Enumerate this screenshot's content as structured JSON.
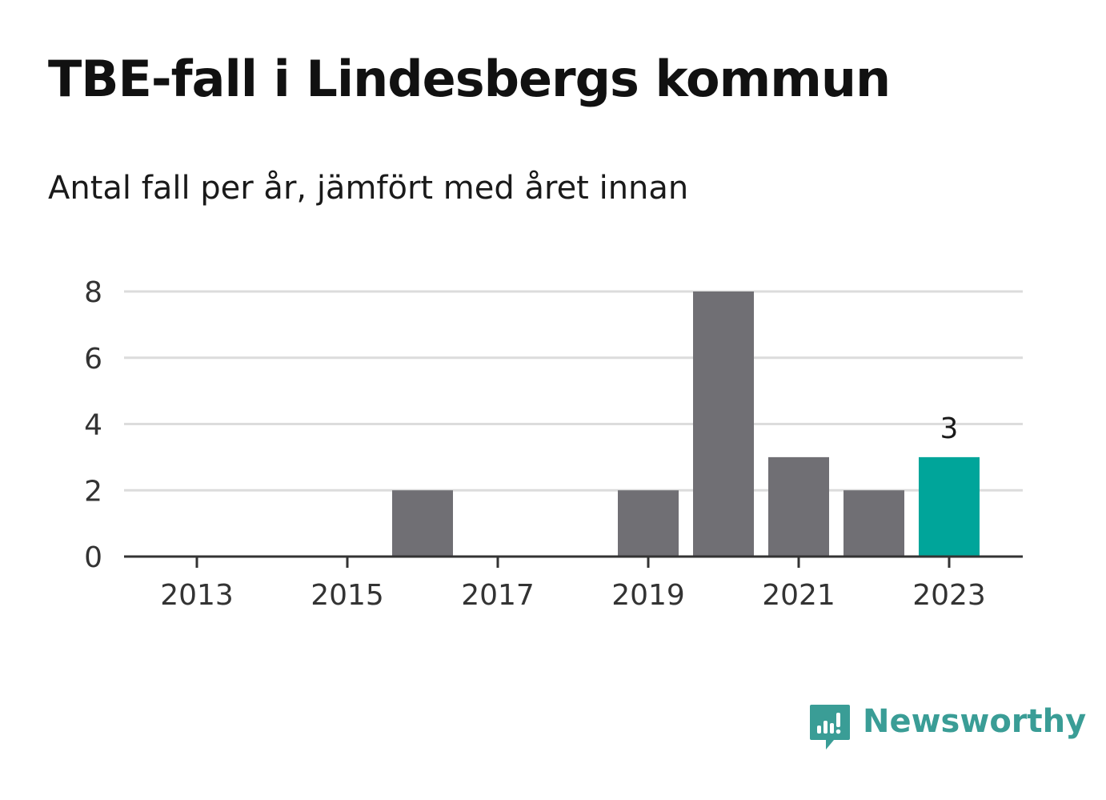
{
  "header": {
    "title": "TBE-fall i Lindesbergs kommun",
    "subtitle": "Antal fall per år, jämfört med året innan"
  },
  "chart_data": {
    "type": "bar",
    "categories": [
      "2013",
      "2014",
      "2015",
      "2016",
      "2017",
      "2018",
      "2019",
      "2020",
      "2021",
      "2022",
      "2023"
    ],
    "values": [
      0,
      0,
      0,
      2,
      0,
      0,
      2,
      8,
      3,
      2,
      3
    ],
    "x_tick_labels": [
      "2013",
      "2015",
      "2017",
      "2019",
      "2021",
      "2023"
    ],
    "y_ticks": [
      0,
      2,
      4,
      6,
      8
    ],
    "ylim": [
      0,
      8
    ],
    "grid": true,
    "highlight_index": 10,
    "highlight_label": "3",
    "colors": {
      "bar": "#706f74",
      "highlight": "#00a59a",
      "grid": "#dcdcdc",
      "axis": "#333333",
      "tick_text": "#333333"
    }
  },
  "brand": {
    "name": "Newsworthy",
    "icon": "newsworthy-logo-icon",
    "color": "#3a9d96"
  }
}
